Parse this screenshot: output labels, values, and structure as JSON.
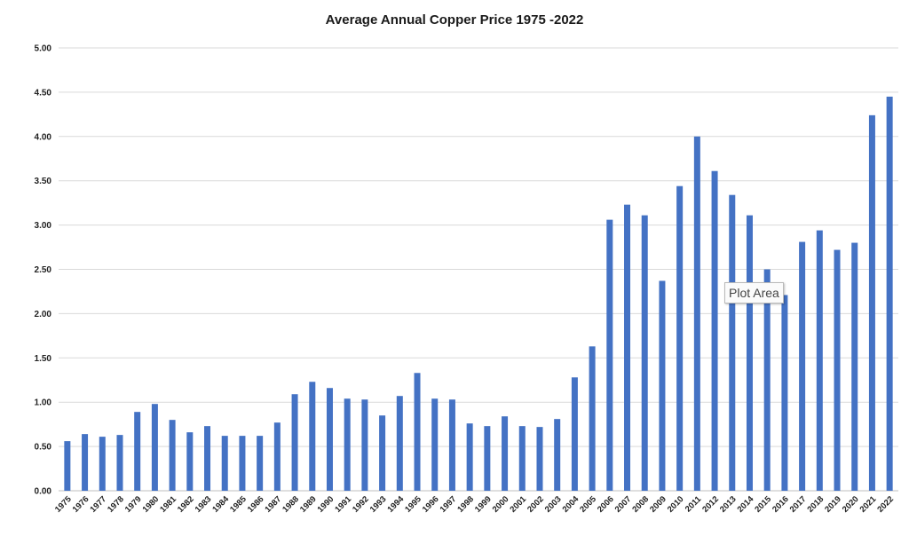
{
  "colors": {
    "bar": "#4472C4",
    "grid": "#d9d9d9",
    "axis": "#bfbfbf",
    "text": "#222222"
  },
  "tooltip": {
    "text": "Plot Area"
  },
  "chart_data": {
    "type": "bar",
    "title": "Average Annual Copper Price 1975 -2022",
    "xlabel": "",
    "ylabel": "",
    "ylim": [
      0,
      5
    ],
    "yticks": [
      "0.00",
      "0.50",
      "1.00",
      "1.50",
      "2.00",
      "2.50",
      "3.00",
      "3.50",
      "4.00",
      "4.50",
      "5.00"
    ],
    "grid": true,
    "legend": "none",
    "categories": [
      "1975",
      "1976",
      "1977",
      "1978",
      "1979",
      "1980",
      "1981",
      "1982",
      "1983",
      "1984",
      "1985",
      "1986",
      "1987",
      "1988",
      "1989",
      "1990",
      "1991",
      "1992",
      "1993",
      "1994",
      "1995",
      "1996",
      "1997",
      "1998",
      "1999",
      "2000",
      "2001",
      "2002",
      "2003",
      "2004",
      "2005",
      "2006",
      "2007",
      "2008",
      "2009",
      "2010",
      "2011",
      "2012",
      "2013",
      "2014",
      "2015",
      "2016",
      "2017",
      "2018",
      "2019",
      "2020",
      "2021",
      "2022"
    ],
    "values": [
      0.56,
      0.64,
      0.61,
      0.63,
      0.89,
      0.98,
      0.8,
      0.66,
      0.73,
      0.62,
      0.62,
      0.62,
      0.77,
      1.09,
      1.23,
      1.16,
      1.04,
      1.03,
      0.85,
      1.07,
      1.33,
      1.04,
      1.03,
      0.76,
      0.73,
      0.84,
      0.73,
      0.72,
      0.81,
      1.28,
      1.63,
      3.06,
      3.23,
      3.11,
      2.37,
      3.44,
      4.0,
      3.61,
      3.34,
      3.11,
      2.5,
      2.21,
      2.81,
      2.94,
      2.72,
      2.8,
      4.24,
      4.45
    ]
  }
}
